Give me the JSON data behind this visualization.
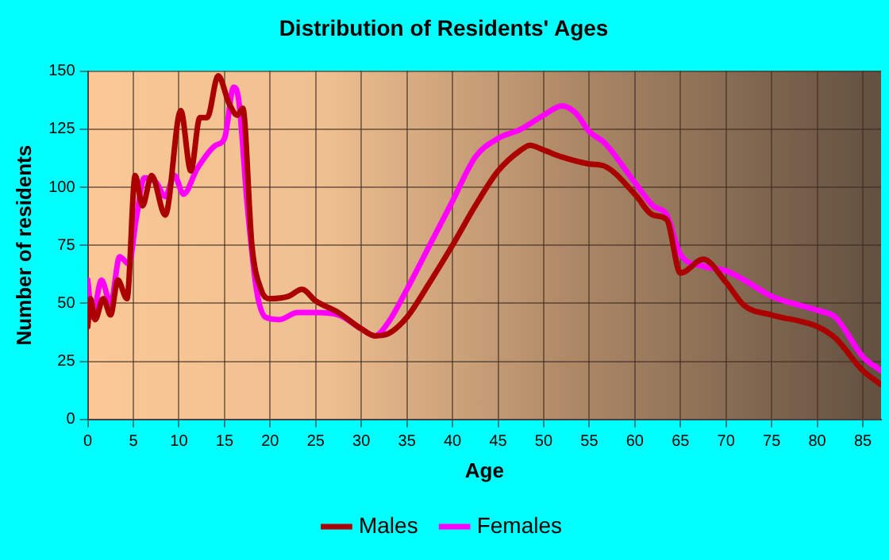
{
  "chart_data": {
    "type": "line",
    "title": "Distribution of Residents' Ages",
    "xlabel": "Age",
    "ylabel": "Number of residents",
    "xlim": [
      0,
      87
    ],
    "xticks": [
      0,
      5,
      10,
      15,
      20,
      25,
      30,
      35,
      40,
      45,
      50,
      55,
      60,
      65,
      70,
      75,
      80,
      85
    ],
    "ylim": [
      0,
      150
    ],
    "yticks": [
      0,
      25,
      50,
      75,
      100,
      125,
      150
    ],
    "grid": true,
    "legend": "bottom",
    "marker": "none",
    "line_style": "solid",
    "series": [
      {
        "name": "Males",
        "color": "#aa0000",
        "x": [
          0,
          0.3,
          0.8,
          1.7,
          2.5,
          3.3,
          4.3,
          5.2,
          6,
          7,
          8.5,
          10.2,
          11.3,
          12.3,
          13.1,
          14.3,
          15.5,
          16.4,
          17,
          18,
          19,
          20,
          22,
          23.5,
          25,
          27.5,
          30,
          31.5,
          33,
          35,
          37.5,
          40,
          42.5,
          45,
          47.5,
          48.5,
          50,
          52,
          55,
          56.7,
          60,
          62,
          63.5,
          65,
          67.5,
          70,
          72,
          75,
          80,
          82,
          85,
          87
        ],
        "values": [
          40,
          52,
          43,
          52,
          45,
          60,
          52,
          105,
          92,
          105,
          88,
          133,
          107,
          130,
          130,
          148,
          136,
          131,
          134,
          75,
          56,
          52,
          53,
          56,
          51,
          46,
          39,
          36,
          37,
          44,
          59,
          75,
          92,
          107,
          116,
          118,
          116,
          113,
          110,
          109,
          97,
          88,
          86,
          63,
          69,
          59,
          49,
          45,
          40,
          35,
          21,
          15
        ]
      },
      {
        "name": "Females",
        "color": "#ff00ff",
        "x": [
          0,
          0.5,
          1.5,
          2.5,
          3.5,
          4.5,
          5.3,
          6.2,
          7.5,
          8.5,
          9.5,
          10.5,
          12,
          14,
          15,
          16,
          16.5,
          17.5,
          18.5,
          19.5,
          21,
          23,
          25,
          27.5,
          30,
          31.5,
          33,
          35,
          37.5,
          40,
          42.5,
          45,
          47.5,
          50,
          52,
          53.5,
          55,
          56.7,
          60,
          62,
          63.5,
          65,
          67.5,
          70,
          72,
          75,
          80,
          82,
          85,
          87
        ],
        "values": [
          60,
          44,
          60,
          50,
          70,
          67,
          86,
          104,
          102,
          96,
          105,
          97,
          108,
          118,
          121,
          143,
          139,
          92,
          56,
          44,
          43,
          46,
          46,
          45,
          39,
          36,
          42,
          56,
          75,
          94,
          113,
          121,
          125,
          131,
          135,
          132,
          124,
          119,
          102,
          92,
          88,
          71,
          66,
          64,
          60,
          53,
          47,
          44,
          27,
          21
        ]
      }
    ]
  }
}
